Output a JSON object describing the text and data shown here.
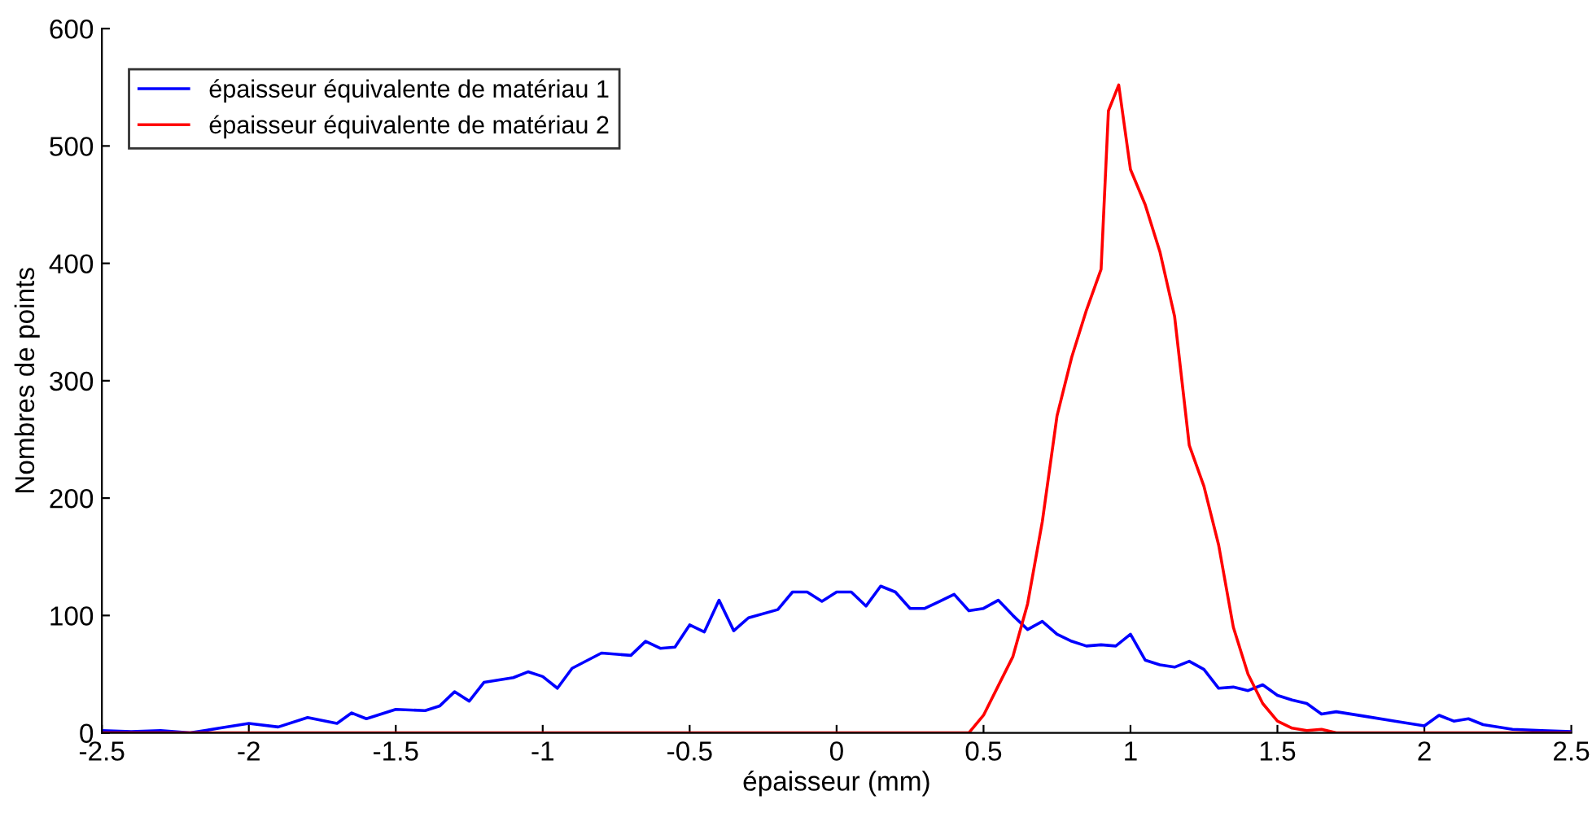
{
  "chart_data": {
    "type": "line",
    "xlabel": "épaisseur (mm)",
    "ylabel": "Nombres de points",
    "xlim": [
      -2.5,
      2.5
    ],
    "ylim": [
      0,
      600
    ],
    "xticks": [
      -2.5,
      -2,
      -1.5,
      -1,
      -0.5,
      0,
      0.5,
      1,
      1.5,
      2,
      2.5
    ],
    "yticks": [
      0,
      100,
      200,
      300,
      400,
      500,
      600
    ],
    "grid": false,
    "legend": "top left",
    "marker": "none",
    "line_style": "solid",
    "series": [
      {
        "name": "épaisseur équivalente de matériau 1",
        "color": "#0000ff",
        "x": [
          -2.5,
          -2.4,
          -2.3,
          -2.2,
          -2.1,
          -2.0,
          -1.9,
          -1.8,
          -1.7,
          -1.65,
          -1.6,
          -1.5,
          -1.4,
          -1.35,
          -1.3,
          -1.25,
          -1.2,
          -1.1,
          -1.05,
          -1.0,
          -0.95,
          -0.9,
          -0.8,
          -0.7,
          -0.65,
          -0.6,
          -0.55,
          -0.5,
          -0.45,
          -0.4,
          -0.35,
          -0.3,
          -0.2,
          -0.15,
          -0.1,
          -0.05,
          0,
          0.05,
          0.1,
          0.15,
          0.2,
          0.25,
          0.3,
          0.35,
          0.4,
          0.45,
          0.5,
          0.55,
          0.6,
          0.65,
          0.7,
          0.75,
          0.8,
          0.85,
          0.9,
          0.95,
          1.0,
          1.05,
          1.1,
          1.15,
          1.2,
          1.25,
          1.3,
          1.35,
          1.4,
          1.45,
          1.5,
          1.55,
          1.6,
          1.65,
          1.7,
          1.8,
          1.9,
          2.0,
          2.05,
          2.1,
          2.15,
          2.2,
          2.3,
          2.4,
          2.5
        ],
        "values": [
          2,
          1,
          2,
          0,
          4,
          8,
          5,
          13,
          8,
          17,
          12,
          20,
          19,
          23,
          35,
          27,
          43,
          47,
          52,
          48,
          38,
          55,
          68,
          66,
          78,
          72,
          73,
          92,
          86,
          113,
          87,
          98,
          105,
          120,
          120,
          112,
          120,
          120,
          108,
          125,
          120,
          106,
          106,
          112,
          118,
          104,
          106,
          113,
          100,
          88,
          95,
          84,
          78,
          74,
          75,
          74,
          84,
          62,
          58,
          56,
          61,
          54,
          38,
          39,
          36,
          41,
          32,
          28,
          25,
          16,
          18,
          14,
          10,
          6,
          15,
          10,
          12,
          7,
          3,
          2,
          1
        ]
      },
      {
        "name": "épaisseur équivalente de matériau 2",
        "color": "#ff0000",
        "x": [
          -2.5,
          0.3,
          0.45,
          0.5,
          0.55,
          0.6,
          0.65,
          0.7,
          0.75,
          0.8,
          0.85,
          0.9,
          0.925,
          0.96,
          1.0,
          1.05,
          1.1,
          1.15,
          1.2,
          1.25,
          1.3,
          1.35,
          1.4,
          1.45,
          1.5,
          1.55,
          1.6,
          1.65,
          1.7,
          2.5
        ],
        "values": [
          0,
          0,
          0,
          15,
          40,
          65,
          110,
          180,
          270,
          320,
          360,
          395,
          530,
          552,
          480,
          450,
          410,
          355,
          245,
          210,
          160,
          90,
          50,
          25,
          10,
          4,
          2,
          3,
          0,
          0
        ]
      }
    ]
  }
}
